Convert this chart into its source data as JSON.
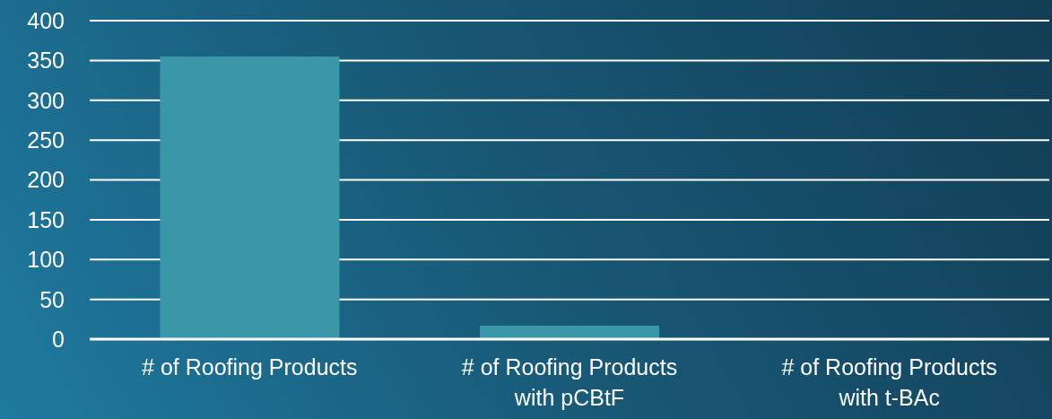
{
  "chart_data": {
    "type": "bar",
    "categories": [
      "# of Roofing Products",
      "# of Roofing Products with pCBtF",
      "# of Roofing Products with t-BAc"
    ],
    "values": [
      355,
      17,
      0
    ],
    "color": "#3a97a8",
    "ylim": [
      0,
      400
    ],
    "yticks": [
      0,
      50,
      100,
      150,
      200,
      250,
      300,
      350,
      400
    ],
    "grid": "y"
  }
}
